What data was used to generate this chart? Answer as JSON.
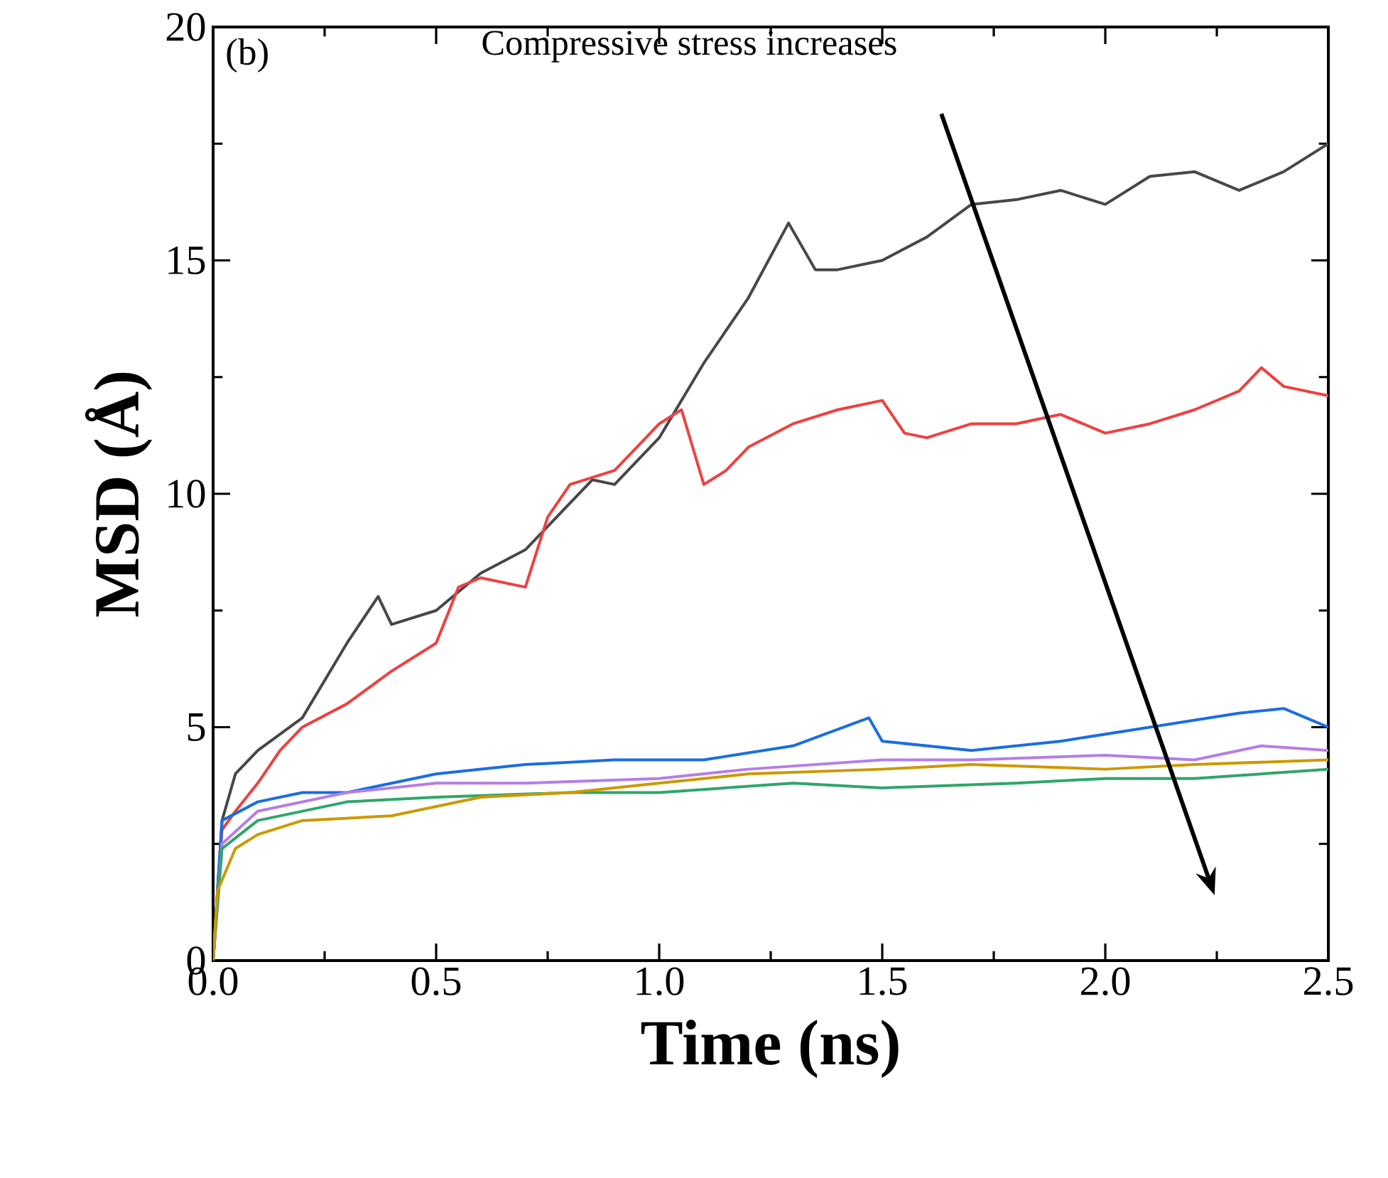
{
  "chart_data": {
    "type": "line",
    "xlabel": "Time (ns)",
    "ylabel": "MSD (Å)",
    "annotations": [
      "(b)",
      "Compressive stress increases"
    ],
    "xlim": [
      0,
      2.5
    ],
    "ylim": [
      0,
      20
    ],
    "xticks": [
      {
        "value": 0,
        "label": "0.0"
      },
      {
        "value": 0.5,
        "label": "0.5"
      },
      {
        "value": 1,
        "label": "1.0"
      },
      {
        "value": 1.5,
        "label": "1.5"
      },
      {
        "value": 2,
        "label": "2.0"
      },
      {
        "value": 2.5,
        "label": "2.5"
      }
    ],
    "yticks": [
      0,
      5,
      10,
      15,
      20
    ],
    "line_style": "solid",
    "marker": "none",
    "series": [
      {
        "color": "#474747",
        "x": [
          0,
          0.02,
          0.05,
          0.1,
          0.2,
          0.3,
          0.37,
          0.4,
          0.5,
          0.6,
          0.7,
          0.8,
          0.85,
          0.9,
          1.0,
          1.1,
          1.2,
          1.29,
          1.35,
          1.4,
          1.5,
          1.6,
          1.7,
          1.8,
          1.9,
          2.0,
          2.1,
          2.2,
          2.3,
          2.4,
          2.5
        ],
        "values": [
          0,
          3,
          4,
          4.5,
          5.2,
          6.8,
          7.8,
          7.2,
          7.5,
          8.3,
          8.8,
          9.8,
          10.3,
          10.2,
          11.2,
          12.8,
          14.2,
          15.8,
          14.8,
          14.8,
          15,
          15.5,
          16.2,
          16.3,
          16.5,
          16.2,
          16.8,
          16.9,
          16.5,
          16.9,
          17.5
        ]
      },
      {
        "color": "#f04040",
        "x": [
          0,
          0.02,
          0.05,
          0.1,
          0.15,
          0.2,
          0.3,
          0.4,
          0.5,
          0.55,
          0.6,
          0.7,
          0.75,
          0.8,
          0.9,
          0.95,
          1.0,
          1.05,
          1.1,
          1.15,
          1.2,
          1.3,
          1.4,
          1.5,
          1.55,
          1.6,
          1.7,
          1.8,
          1.9,
          2.0,
          2.1,
          2.2,
          2.3,
          2.35,
          2.4,
          2.5
        ],
        "values": [
          0,
          2.8,
          3.2,
          3.8,
          4.5,
          5,
          5.5,
          6.2,
          6.8,
          8,
          8.2,
          8,
          9.5,
          10.2,
          10.5,
          11,
          11.5,
          11.8,
          10.2,
          10.5,
          11,
          11.5,
          11.8,
          12,
          11.3,
          11.2,
          11.5,
          11.5,
          11.7,
          11.3,
          11.5,
          11.8,
          12.2,
          12.7,
          12.3,
          12.1
        ]
      },
      {
        "color": "#1a6ee0",
        "x": [
          0,
          0.02,
          0.1,
          0.2,
          0.3,
          0.5,
          0.7,
          0.9,
          1.1,
          1.3,
          1.47,
          1.5,
          1.7,
          1.9,
          2.1,
          2.3,
          2.4,
          2.5
        ],
        "values": [
          0,
          3,
          3.4,
          3.6,
          3.6,
          4.0,
          4.2,
          4.3,
          4.3,
          4.6,
          5.2,
          4.7,
          4.5,
          4.7,
          5.0,
          5.3,
          5.4,
          5.0
        ]
      },
      {
        "color": "#b57ee6",
        "x": [
          0,
          0.02,
          0.1,
          0.3,
          0.5,
          0.7,
          1.0,
          1.2,
          1.5,
          1.7,
          2.0,
          2.2,
          2.35,
          2.5
        ],
        "values": [
          0,
          2.5,
          3.2,
          3.6,
          3.8,
          3.8,
          3.9,
          4.1,
          4.3,
          4.3,
          4.4,
          4.3,
          4.6,
          4.5
        ]
      },
      {
        "color": "#2fa66a",
        "x": [
          0,
          0.02,
          0.1,
          0.3,
          0.5,
          0.8,
          1.0,
          1.3,
          1.5,
          1.8,
          2.0,
          2.2,
          2.5
        ],
        "values": [
          0,
          2.4,
          3.0,
          3.4,
          3.5,
          3.6,
          3.6,
          3.8,
          3.7,
          3.8,
          3.9,
          3.9,
          4.1
        ]
      },
      {
        "color": "#cc9900",
        "x": [
          0,
          0.01,
          0.05,
          0.1,
          0.2,
          0.4,
          0.6,
          0.8,
          1.0,
          1.2,
          1.5,
          1.7,
          2.0,
          2.2,
          2.5
        ],
        "values": [
          0,
          1.5,
          2.4,
          2.7,
          3.0,
          3.1,
          3.5,
          3.6,
          3.8,
          4.0,
          4.1,
          4.2,
          4.1,
          4.2,
          4.3
        ]
      }
    ]
  }
}
